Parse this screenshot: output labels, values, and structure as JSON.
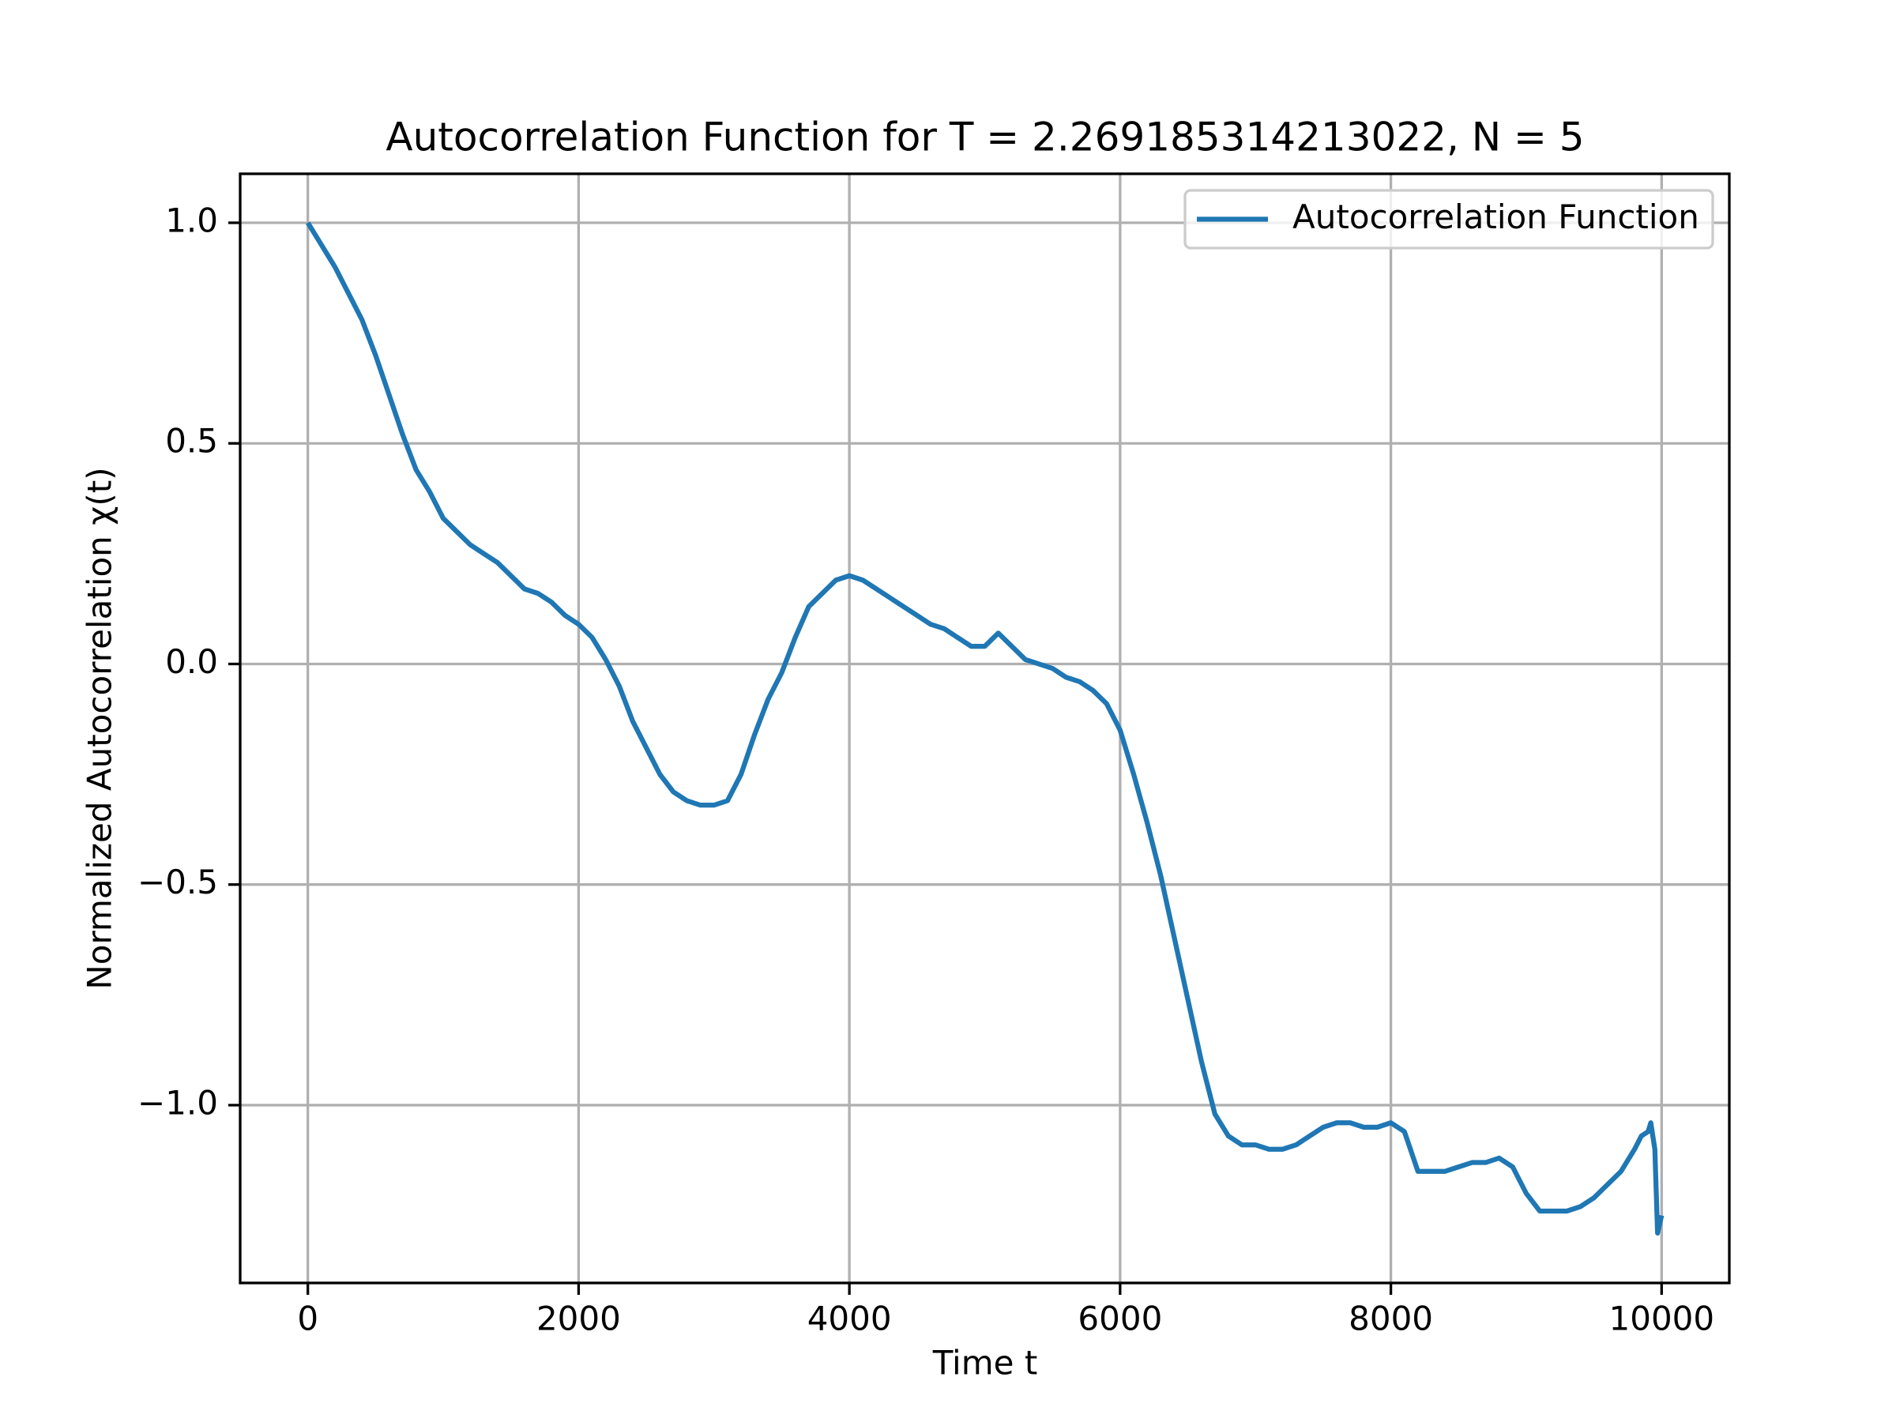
{
  "chart_data": {
    "type": "line",
    "title": "Autocorrelation Function for T = 2.269185314213022, N = 5",
    "xlabel": "Time t",
    "ylabel": "Normalized Autocorrelation χ(t)",
    "x": [
      0,
      100,
      200,
      300,
      400,
      500,
      600,
      700,
      800,
      900,
      1000,
      1100,
      1200,
      1300,
      1400,
      1500,
      1600,
      1700,
      1800,
      1900,
      2000,
      2100,
      2200,
      2300,
      2400,
      2500,
      2600,
      2700,
      2800,
      2900,
      3000,
      3100,
      3200,
      3300,
      3400,
      3500,
      3600,
      3700,
      3800,
      3900,
      4000,
      4100,
      4200,
      4300,
      4400,
      4500,
      4600,
      4700,
      4800,
      4900,
      5000,
      5100,
      5200,
      5300,
      5400,
      5500,
      5600,
      5700,
      5800,
      5900,
      6000,
      6100,
      6200,
      6300,
      6400,
      6500,
      6600,
      6700,
      6800,
      6900,
      7000,
      7100,
      7200,
      7300,
      7400,
      7500,
      7600,
      7700,
      7800,
      7900,
      8000,
      8100,
      8200,
      8300,
      8400,
      8500,
      8600,
      8700,
      8800,
      8900,
      9000,
      9100,
      9200,
      9300,
      9400,
      9500,
      9600,
      9700,
      9800,
      9850,
      9900,
      9920,
      9950,
      9970,
      10000
    ],
    "series": [
      {
        "name": "Autocorrelation Function",
        "color": "#1f77b4",
        "values": [
          1.0,
          0.95,
          0.9,
          0.84,
          0.78,
          0.7,
          0.61,
          0.52,
          0.44,
          0.39,
          0.33,
          0.3,
          0.27,
          0.25,
          0.23,
          0.2,
          0.17,
          0.16,
          0.14,
          0.11,
          0.09,
          0.06,
          0.01,
          -0.05,
          -0.13,
          -0.19,
          -0.25,
          -0.29,
          -0.31,
          -0.32,
          -0.32,
          -0.31,
          -0.25,
          -0.16,
          -0.08,
          -0.02,
          0.06,
          0.13,
          0.16,
          0.19,
          0.2,
          0.19,
          0.17,
          0.15,
          0.13,
          0.11,
          0.09,
          0.08,
          0.06,
          0.04,
          0.04,
          0.07,
          0.04,
          0.01,
          0.0,
          -0.01,
          -0.03,
          -0.04,
          -0.06,
          -0.09,
          -0.15,
          -0.25,
          -0.36,
          -0.48,
          -0.62,
          -0.76,
          -0.9,
          -1.02,
          -1.07,
          -1.09,
          -1.09,
          -1.1,
          -1.1,
          -1.09,
          -1.07,
          -1.05,
          -1.04,
          -1.04,
          -1.05,
          -1.05,
          -1.04,
          -1.06,
          -1.15,
          -1.15,
          -1.15,
          -1.14,
          -1.13,
          -1.13,
          -1.12,
          -1.14,
          -1.2,
          -1.24,
          -1.24,
          -1.24,
          -1.23,
          -1.21,
          -1.18,
          -1.15,
          -1.1,
          -1.07,
          -1.06,
          -1.04,
          -1.1,
          -1.29,
          -1.25
        ]
      }
    ],
    "xlim": [
      -500,
      10500
    ],
    "ylim": [
      -1.403,
      1.111
    ],
    "xticks": [
      0,
      2000,
      4000,
      6000,
      8000,
      10000
    ],
    "yticks": [
      {
        "value": -1.0,
        "label": "−1.0"
      },
      {
        "value": -0.5,
        "label": "−0.5"
      },
      {
        "value": 0.0,
        "label": "0.0"
      },
      0.5,
      {
        "value": 1.0,
        "label": "1.0"
      }
    ],
    "grid": true,
    "legend": "upper right"
  }
}
